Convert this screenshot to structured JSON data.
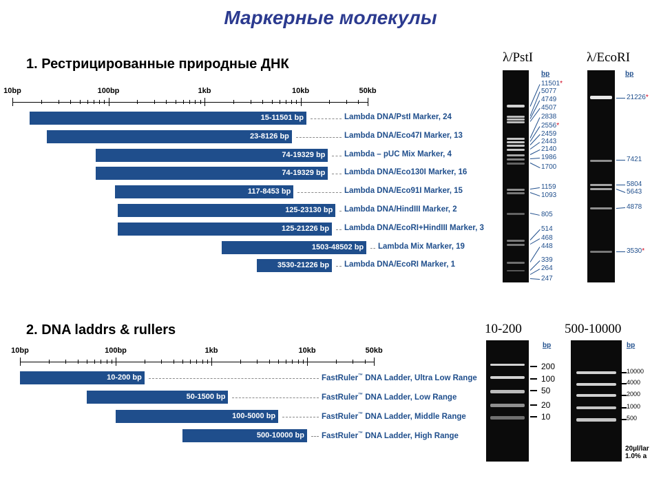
{
  "title": "Маркерные молекулы",
  "section1": {
    "title": "1. Рестрицированные природные ДНК",
    "axis_labels": [
      {
        "label": "10bp",
        "log": 1
      },
      {
        "label": "100bp",
        "log": 2
      },
      {
        "label": "1kb",
        "log": 3
      },
      {
        "label": "10kb",
        "log": 4
      },
      {
        "label": "50kb",
        "log": 4.699
      }
    ],
    "markers": [
      {
        "range": "15-11501 bp",
        "name": "Lambda DNA/PstI Marker, 24",
        "from": 15,
        "to": 11501
      },
      {
        "range": "23-8126 bp",
        "name": "Lambda DNA/Eco47I Marker, 13",
        "from": 23,
        "to": 8126
      },
      {
        "range": "74-19329 bp",
        "name": "Lambda – pUC Mix Marker, 4",
        "from": 74,
        "to": 19329
      },
      {
        "range": "74-19329 bp",
        "name": "Lambda DNA/Eco130I Marker, 16",
        "from": 74,
        "to": 19329
      },
      {
        "range": "117-8453 bp",
        "name": "Lambda DNA/Eco91I Marker, 15",
        "from": 117,
        "to": 8453
      },
      {
        "range": "125-23130 bp",
        "name": "Lambda DNA/HindIII Marker, 2",
        "from": 125,
        "to": 23130
      },
      {
        "range": "125-21226 bp",
        "name": "Lambda DNA/EcoRI+HindIII Marker, 3",
        "from": 125,
        "to": 21226
      },
      {
        "range": "1503-48502 bp",
        "name": "Lambda Mix Marker, 19",
        "from": 1503,
        "to": 48502
      },
      {
        "range": "3530-21226 bp",
        "name": "Lambda DNA/EcoRI Marker, 1",
        "from": 3530,
        "to": 21226
      }
    ]
  },
  "section2": {
    "title": "2. DNA laddrs & rullers",
    "axis_labels": [
      {
        "label": "10bp",
        "log": 1
      },
      {
        "label": "100bp",
        "log": 2
      },
      {
        "label": "1kb",
        "log": 3
      },
      {
        "label": "10kb",
        "log": 4
      },
      {
        "label": "50kb",
        "log": 4.699
      }
    ],
    "ladders": [
      {
        "range": "10-200 bp",
        "brand": "FastRuler",
        "tm": "™",
        "name": " DNA Ladder, Ultra Low Range",
        "from": 10,
        "to": 200
      },
      {
        "range": "50-1500 bp",
        "brand": "FastRuler",
        "tm": "™",
        "name": " DNA Ladder, Low Range",
        "from": 50,
        "to": 1500
      },
      {
        "range": "100-5000 bp",
        "brand": "FastRuler",
        "tm": "™",
        "name": " DNA Ladder, Middle Range",
        "from": 100,
        "to": 5000
      },
      {
        "range": "500-10000 bp",
        "brand": "FastRuler",
        "tm": "™",
        "name": " DNA Ladder, High Range",
        "from": 500,
        "to": 10000
      }
    ]
  },
  "gels": {
    "pst": {
      "title": "λ/PstI",
      "bp": "bp",
      "labels": [
        {
          "v": "11501",
          "star": "*"
        },
        {
          "v": "5077"
        },
        {
          "v": "4749"
        },
        {
          "v": "4507"
        },
        {
          "v": "2838"
        },
        {
          "v": "2556",
          "star": "*"
        },
        {
          "v": "2459"
        },
        {
          "v": "2443"
        },
        {
          "v": "2140"
        },
        {
          "v": "1986"
        },
        {
          "v": "1700"
        },
        {
          "v": "1159"
        },
        {
          "v": "1093"
        },
        {
          "v": "805"
        },
        {
          "v": "514"
        },
        {
          "v": "468"
        },
        {
          "v": "448"
        },
        {
          "v": "339"
        },
        {
          "v": "264"
        },
        {
          "v": "247"
        }
      ]
    },
    "eco": {
      "title": "λ/EcoRI",
      "bp": "bp",
      "labels": [
        {
          "v": "21226",
          "star": "*"
        },
        {
          "v": "7421"
        },
        {
          "v": "5804"
        },
        {
          "v": "5643"
        },
        {
          "v": "4878"
        },
        {
          "v": "3530",
          "star": "*"
        }
      ]
    },
    "low": {
      "title": "10-200",
      "bp": "bp",
      "labels": [
        "200",
        "100",
        "50",
        "20",
        "10"
      ]
    },
    "high": {
      "title": "500-10000",
      "bp": "bp",
      "labels": [
        "10000",
        "4000",
        "2000",
        "1000",
        "500"
      ],
      "note1": "20µl/lar",
      "note2": "1.0% a"
    }
  }
}
